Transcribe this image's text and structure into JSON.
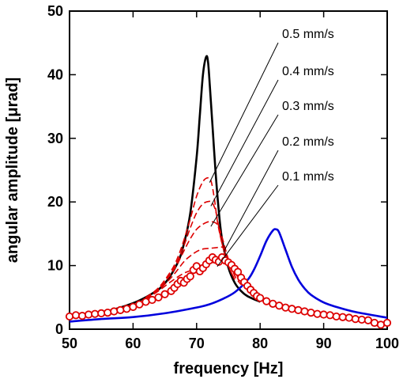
{
  "chart_data": {
    "type": "line",
    "title": "",
    "xlabel": "frequency [Hz]",
    "ylabel": "angular amplitude [μrad]",
    "xlim": [
      50,
      100
    ],
    "ylim": [
      0,
      50
    ],
    "xticks": [
      50,
      60,
      70,
      80,
      90,
      100
    ],
    "yticks": [
      0,
      10,
      20,
      30,
      40,
      50
    ],
    "grid": false,
    "legend": "none",
    "series": [
      {
        "style": "solid",
        "color": "#000000",
        "x": [
          50,
          55,
          60,
          63,
          65,
          67,
          68,
          69,
          70,
          70.5,
          71,
          71.5,
          71.8,
          72.1,
          72.5,
          73,
          73.5,
          74,
          75,
          76,
          77,
          78,
          80
        ],
        "y": [
          1.8,
          2.6,
          4.1,
          5.6,
          7.2,
          10.4,
          13.4,
          18.2,
          27.0,
          33.5,
          40.0,
          42.8,
          42.0,
          38.0,
          32.0,
          24.5,
          18.5,
          14.2,
          9.7,
          7.3,
          6.0,
          5.2,
          4.3
        ]
      },
      {
        "style": "solid",
        "color": "#0000dd",
        "x": [
          50,
          55,
          60,
          65,
          70,
          72,
          74,
          76,
          78,
          79,
          80,
          81,
          82,
          82.5,
          83,
          84,
          85,
          86,
          87,
          88,
          90,
          92,
          95,
          100
        ],
        "y": [
          1.2,
          1.6,
          1.9,
          2.5,
          3.4,
          3.9,
          4.7,
          5.8,
          7.7,
          9.3,
          11.5,
          13.9,
          15.5,
          15.7,
          15.2,
          12.5,
          9.8,
          7.8,
          6.4,
          5.4,
          4.2,
          3.5,
          2.7,
          1.8
        ]
      },
      {
        "name": "0.1 mm/s",
        "style": "dashed",
        "color": "#dd0000",
        "x": [
          62,
          64,
          66,
          68,
          70,
          71,
          72,
          73,
          74,
          75,
          76,
          77,
          78
        ],
        "y": [
          4.7,
          6.0,
          7.5,
          8.8,
          9.5,
          9.9,
          10.3,
          10.6,
          10.5,
          10.1,
          9.3,
          8.2,
          7.0
        ]
      },
      {
        "name": "0.2 mm/s",
        "style": "dashed",
        "color": "#dd0000",
        "x": [
          62,
          64,
          66,
          68,
          69,
          70,
          71,
          72,
          73,
          74,
          74.5,
          75,
          76,
          77,
          78
        ],
        "y": [
          4.8,
          6.2,
          8.1,
          10.6,
          11.5,
          12.2,
          12.6,
          12.7,
          12.8,
          12.9,
          12.3,
          11.0,
          9.0,
          7.5,
          6.5
        ]
      },
      {
        "name": "0.3 mm/s",
        "style": "dashed",
        "color": "#dd0000",
        "x": [
          62,
          64,
          66,
          67,
          68,
          69,
          70,
          71,
          72,
          73,
          73.5,
          74,
          75,
          76,
          77
        ],
        "y": [
          4.9,
          6.3,
          8.7,
          10.3,
          12.3,
          14.2,
          15.7,
          16.5,
          16.9,
          16.7,
          16.0,
          14.5,
          11.0,
          8.4,
          7.0
        ]
      },
      {
        "name": "0.4 mm/s",
        "style": "dashed",
        "color": "#dd0000",
        "x": [
          62,
          64,
          66,
          67,
          68,
          69,
          70,
          71,
          72,
          72.5,
          73,
          73.5,
          74,
          75,
          76
        ],
        "y": [
          4.9,
          6.4,
          8.9,
          10.7,
          13.1,
          15.9,
          18.3,
          19.7,
          20.1,
          19.8,
          18.6,
          16.0,
          13.5,
          10.0,
          7.8
        ]
      },
      {
        "name": "0.5 mm/s",
        "style": "dashed",
        "color": "#dd0000",
        "x": [
          62,
          64,
          66,
          67,
          68,
          69,
          70,
          71,
          71.8,
          72.3,
          72.8,
          73.3,
          74,
          75,
          76
        ],
        "y": [
          5.0,
          6.5,
          9.2,
          11.2,
          14.0,
          17.3,
          20.9,
          23.2,
          23.8,
          23.2,
          20.5,
          16.8,
          13.5,
          10.0,
          7.8
        ]
      },
      {
        "style": "markers",
        "color": "#dd0000",
        "x": [
          50,
          51,
          52,
          53,
          54,
          55,
          56,
          57,
          58,
          59,
          60,
          61,
          62,
          63,
          64,
          65,
          66,
          66.5,
          67,
          67.5,
          68,
          68.5,
          69,
          69.5,
          70,
          70.5,
          71,
          71.5,
          72,
          72.5,
          73,
          73.5,
          74,
          74.5,
          75,
          75.5,
          76,
          76.5,
          77,
          77.5,
          78,
          78.5,
          79,
          79.5,
          80,
          81,
          82,
          83,
          84,
          85,
          86,
          87,
          88,
          89,
          90,
          91,
          92,
          93,
          94,
          95,
          96,
          97,
          98,
          99,
          100
        ],
        "y": [
          2.0,
          2.2,
          2.1,
          2.3,
          2.4,
          2.5,
          2.6,
          2.8,
          3.0,
          3.2,
          3.5,
          3.9,
          4.3,
          4.6,
          5.0,
          5.5,
          6.0,
          6.5,
          7.1,
          7.6,
          7.3,
          7.9,
          8.3,
          9.3,
          9.9,
          9.1,
          9.6,
          10.2,
          10.8,
          11.3,
          10.9,
          10.6,
          11.3,
          10.8,
          10.5,
          10.1,
          9.5,
          9.0,
          8.1,
          7.4,
          6.8,
          6.2,
          5.7,
          5.2,
          4.9,
          4.4,
          4.0,
          3.7,
          3.4,
          3.2,
          3.0,
          2.8,
          2.6,
          2.4,
          2.3,
          2.2,
          2.0,
          1.9,
          1.8,
          1.6,
          1.5,
          1.4,
          1.0,
          0.7,
          1.0
        ]
      }
    ],
    "annotations": [
      "0.5 mm/s",
      "0.4 mm/s",
      "0.3 mm/s",
      "0.2 mm/s",
      "0.1 mm/s"
    ]
  }
}
